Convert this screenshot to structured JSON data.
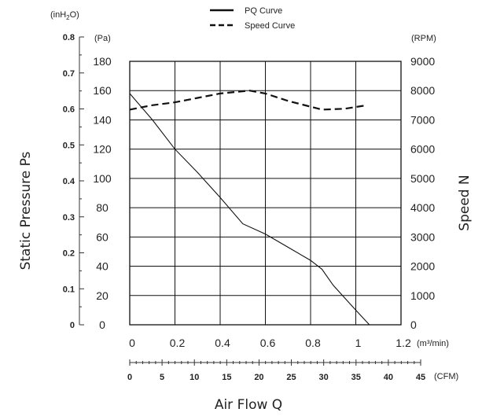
{
  "chart_data": {
    "type": "line",
    "legend": {
      "position": "top-center",
      "entries": [
        {
          "label": "PQ Curve",
          "style": "solid"
        },
        {
          "label": "Speed Curve",
          "style": "dashed"
        }
      ]
    },
    "x_axis": {
      "label": "Air Flow Q",
      "unit_label": "(m³/min)",
      "range": [
        0,
        1.2
      ],
      "ticks": [
        0,
        0.2,
        0.4,
        0.6,
        0.8,
        1,
        1.2
      ],
      "tick_labels": [
        "0",
        "0.2",
        "0.4",
        "0.6",
        "0.8",
        "1",
        "1.2"
      ]
    },
    "x_axis_secondary": {
      "unit_label": "(CFM)",
      "range": [
        0,
        45
      ],
      "ticks": [
        0,
        5,
        10,
        15,
        20,
        25,
        30,
        35,
        40,
        45
      ],
      "tick_labels": [
        "0",
        "5",
        "10",
        "15",
        "20",
        "25",
        "30",
        "35",
        "40",
        "45"
      ]
    },
    "y_axis_left": {
      "label": "Static Pressure Ps",
      "unit_label": "(Pa)",
      "range": [
        0,
        180
      ],
      "ticks": [
        0,
        20,
        40,
        60,
        80,
        100,
        120,
        140,
        160,
        180
      ],
      "tick_labels": [
        "0",
        "20",
        "40",
        "60",
        "80",
        "100",
        "120",
        "140",
        "160",
        "180"
      ]
    },
    "y_axis_far_left": {
      "unit_label_prefix": "(inH",
      "unit_label_subscript": "2",
      "unit_label_suffix": "O)",
      "range": [
        0,
        0.8
      ],
      "ticks": [
        0,
        0.1,
        0.2,
        0.3,
        0.4,
        0.5,
        0.6,
        0.7,
        0.8
      ],
      "tick_labels": [
        "0",
        "0.1",
        "0.2",
        "0.3",
        "0.4",
        "0.5",
        "0.6",
        "0.7",
        "0.8"
      ]
    },
    "y_axis_right": {
      "label": "Speed N",
      "unit_label": "(RPM)",
      "range": [
        0,
        9000
      ],
      "ticks": [
        0,
        1000,
        2000,
        3000,
        4000,
        5000,
        6000,
        7000,
        8000,
        9000
      ],
      "tick_labels": [
        "0",
        "1000",
        "2000",
        "3000",
        "4000",
        "5000",
        "6000",
        "7000",
        "8000",
        "9000"
      ]
    },
    "grid": true,
    "series": [
      {
        "name": "PQ Curve",
        "axis": "left",
        "style": "solid",
        "points": [
          [
            0,
            158
          ],
          [
            0.1,
            140
          ],
          [
            0.2,
            120
          ],
          [
            0.3,
            104
          ],
          [
            0.4,
            87
          ],
          [
            0.5,
            69
          ],
          [
            0.6,
            62
          ],
          [
            0.7,
            53
          ],
          [
            0.8,
            44
          ],
          [
            0.85,
            38
          ],
          [
            0.9,
            27
          ],
          [
            1.0,
            10
          ],
          [
            1.06,
            0
          ]
        ]
      },
      {
        "name": "Speed Curve",
        "axis": "right",
        "style": "dashed",
        "points": [
          [
            0,
            7350
          ],
          [
            0.1,
            7500
          ],
          [
            0.2,
            7600
          ],
          [
            0.3,
            7750
          ],
          [
            0.4,
            7900
          ],
          [
            0.53,
            8000
          ],
          [
            0.6,
            7900
          ],
          [
            0.7,
            7650
          ],
          [
            0.8,
            7450
          ],
          [
            0.85,
            7350
          ],
          [
            0.95,
            7380
          ],
          [
            1.05,
            7500
          ]
        ]
      }
    ]
  }
}
